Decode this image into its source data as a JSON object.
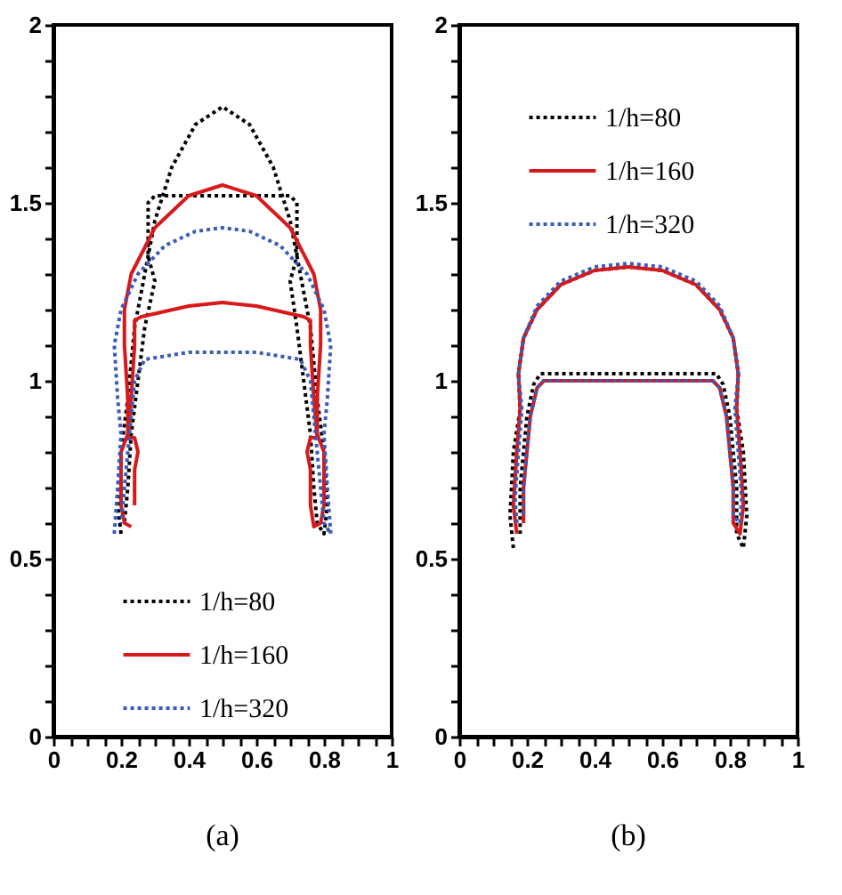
{
  "chart_data": [
    {
      "type": "line",
      "title": "(a)",
      "legend": "bottom",
      "xlim": [
        0,
        1
      ],
      "ylim": [
        0,
        2
      ],
      "xticks": [
        0,
        {
          "value": 0.05,
          "label": null
        },
        {
          "value": 0.1,
          "label": null
        },
        {
          "value": 0.15,
          "label": null
        },
        0.2,
        {
          "value": 0.25,
          "label": null
        },
        {
          "value": 0.3,
          "label": null
        },
        {
          "value": 0.35,
          "label": null
        },
        0.4,
        {
          "value": 0.45,
          "label": null
        },
        {
          "value": 0.5,
          "label": null
        },
        {
          "value": 0.55,
          "label": null
        },
        0.6,
        {
          "value": 0.65,
          "label": null
        },
        {
          "value": 0.7,
          "label": null
        },
        {
          "value": 0.75,
          "label": null
        },
        0.8,
        {
          "value": 0.85,
          "label": null
        },
        {
          "value": 0.9,
          "label": null
        },
        {
          "value": 0.95,
          "label": null
        },
        1
      ],
      "yticks": [
        0,
        {
          "value": 0.1,
          "label": null
        },
        {
          "value": 0.2,
          "label": null
        },
        {
          "value": 0.3,
          "label": null
        },
        {
          "value": 0.4,
          "label": null
        },
        0.5,
        {
          "value": 0.6,
          "label": null
        },
        {
          "value": 0.7,
          "label": null
        },
        {
          "value": 0.8,
          "label": null
        },
        {
          "value": 0.9,
          "label": null
        },
        1,
        {
          "value": 1.1,
          "label": null
        },
        {
          "value": 1.2,
          "label": null
        },
        {
          "value": 1.3,
          "label": null
        },
        {
          "value": 1.4,
          "label": null
        },
        1.5,
        {
          "value": 1.6,
          "label": null
        },
        {
          "value": 1.7,
          "label": null
        },
        {
          "value": 1.8,
          "label": null
        },
        {
          "value": 1.9,
          "label": null
        },
        2
      ],
      "series": [
        {
          "name": "1/h=80",
          "color": "#000000",
          "line_style": "dotted",
          "x": [
            0.2,
            0.19,
            0.2,
            0.22,
            0.24,
            0.27,
            0.3,
            0.35,
            0.42,
            0.5,
            0.58,
            0.65,
            0.7,
            0.73,
            0.76,
            0.78,
            0.8,
            0.81,
            0.8,
            0.78,
            0.77,
            0.76,
            0.74,
            0.72,
            0.7,
            0.72,
            0.72,
            0.7,
            0.5,
            0.3,
            0.28,
            0.28,
            0.3,
            0.27,
            0.25,
            0.23,
            0.22,
            0.21
          ],
          "values": [
            0.57,
            0.65,
            0.8,
            0.95,
            1.15,
            1.3,
            1.45,
            1.6,
            1.72,
            1.77,
            1.72,
            1.6,
            1.45,
            1.3,
            1.15,
            0.95,
            0.8,
            0.65,
            0.57,
            0.6,
            0.7,
            0.85,
            1.0,
            1.15,
            1.28,
            1.35,
            1.5,
            1.52,
            1.52,
            1.52,
            1.5,
            1.35,
            1.28,
            1.15,
            1.0,
            0.85,
            0.7,
            0.6
          ]
        },
        {
          "name": "1/h=160",
          "color": "#d7191c",
          "line_style": "solid",
          "x": [
            0.23,
            0.21,
            0.2,
            0.2,
            0.22,
            0.22,
            0.21,
            0.21,
            0.23,
            0.3,
            0.4,
            0.5,
            0.6,
            0.7,
            0.77,
            0.79,
            0.79,
            0.78,
            0.78,
            0.8,
            0.8,
            0.79,
            0.77,
            0.76,
            0.76,
            0.75,
            0.76,
            0.78,
            0.77,
            0.76,
            0.76,
            0.74,
            0.6,
            0.5,
            0.4,
            0.26,
            0.24,
            0.24,
            0.23,
            0.22,
            0.24,
            0.25,
            0.24,
            0.24
          ],
          "values": [
            0.59,
            0.6,
            0.65,
            0.8,
            0.85,
            0.95,
            1.1,
            1.2,
            1.3,
            1.43,
            1.52,
            1.55,
            1.52,
            1.43,
            1.3,
            1.2,
            1.1,
            0.95,
            0.85,
            0.8,
            0.65,
            0.6,
            0.59,
            0.65,
            0.75,
            0.8,
            0.84,
            0.84,
            0.95,
            1.1,
            1.17,
            1.18,
            1.21,
            1.22,
            1.21,
            1.18,
            1.17,
            1.1,
            0.95,
            0.84,
            0.84,
            0.8,
            0.75,
            0.65
          ]
        },
        {
          "name": "1/h=320",
          "color": "#3a5bb8",
          "line_style": "dotted",
          "x": [
            0.18,
            0.19,
            0.2,
            0.19,
            0.18,
            0.2,
            0.25,
            0.33,
            0.42,
            0.5,
            0.58,
            0.67,
            0.75,
            0.8,
            0.82,
            0.81,
            0.8,
            0.81,
            0.82,
            0.8,
            0.79,
            0.78,
            0.77,
            0.76,
            0.73,
            0.6,
            0.5,
            0.4,
            0.27,
            0.24,
            0.23,
            0.22,
            0.21,
            0.2
          ],
          "values": [
            0.57,
            0.7,
            0.85,
            0.95,
            1.1,
            1.2,
            1.3,
            1.38,
            1.42,
            1.43,
            1.42,
            1.38,
            1.3,
            1.2,
            1.1,
            0.95,
            0.85,
            0.7,
            0.57,
            0.6,
            0.7,
            0.8,
            0.9,
            1.0,
            1.06,
            1.08,
            1.08,
            1.08,
            1.06,
            1.0,
            0.9,
            0.8,
            0.7,
            0.6
          ]
        }
      ]
    },
    {
      "type": "line",
      "title": "(b)",
      "legend": "top",
      "xlim": [
        0,
        1
      ],
      "ylim": [
        0,
        2
      ],
      "xticks": [
        0,
        {
          "value": 0.05,
          "label": null
        },
        {
          "value": 0.1,
          "label": null
        },
        {
          "value": 0.15,
          "label": null
        },
        0.2,
        {
          "value": 0.25,
          "label": null
        },
        {
          "value": 0.3,
          "label": null
        },
        {
          "value": 0.35,
          "label": null
        },
        0.4,
        {
          "value": 0.45,
          "label": null
        },
        {
          "value": 0.5,
          "label": null
        },
        {
          "value": 0.55,
          "label": null
        },
        0.6,
        {
          "value": 0.65,
          "label": null
        },
        {
          "value": 0.7,
          "label": null
        },
        {
          "value": 0.75,
          "label": null
        },
        0.8,
        {
          "value": 0.85,
          "label": null
        },
        {
          "value": 0.9,
          "label": null
        },
        {
          "value": 0.95,
          "label": null
        },
        1
      ],
      "yticks": [
        0,
        {
          "value": 0.1,
          "label": null
        },
        {
          "value": 0.2,
          "label": null
        },
        {
          "value": 0.3,
          "label": null
        },
        {
          "value": 0.4,
          "label": null
        },
        0.5,
        {
          "value": 0.6,
          "label": null
        },
        {
          "value": 0.7,
          "label": null
        },
        {
          "value": 0.8,
          "label": null
        },
        {
          "value": 0.9,
          "label": null
        },
        1,
        {
          "value": 1.1,
          "label": null
        },
        {
          "value": 1.2,
          "label": null
        },
        {
          "value": 1.3,
          "label": null
        },
        {
          "value": 1.4,
          "label": null
        },
        1.5,
        {
          "value": 1.6,
          "label": null
        },
        {
          "value": 1.7,
          "label": null
        },
        {
          "value": 1.8,
          "label": null
        },
        {
          "value": 1.9,
          "label": null
        },
        2
      ],
      "series": [
        {
          "name": "1/h=80",
          "color": "#000000",
          "line_style": "dotted",
          "x": [
            0.16,
            0.15,
            0.16,
            0.18,
            0.175,
            0.19,
            0.23,
            0.3,
            0.4,
            0.5,
            0.6,
            0.7,
            0.77,
            0.81,
            0.825,
            0.82,
            0.84,
            0.85,
            0.84,
            0.82,
            0.82,
            0.81,
            0.8,
            0.78,
            0.76,
            0.5,
            0.24,
            0.22,
            0.2,
            0.19,
            0.18,
            0.18
          ],
          "values": [
            0.53,
            0.62,
            0.8,
            0.92,
            1.02,
            1.12,
            1.2,
            1.27,
            1.31,
            1.32,
            1.31,
            1.27,
            1.2,
            1.12,
            1.02,
            0.92,
            0.8,
            0.62,
            0.53,
            0.57,
            0.7,
            0.8,
            0.9,
            0.99,
            1.02,
            1.02,
            1.02,
            0.99,
            0.9,
            0.8,
            0.7,
            0.57
          ]
        },
        {
          "name": "1/h=160",
          "color": "#d7191c",
          "line_style": "solid",
          "x": [
            0.17,
            0.16,
            0.17,
            0.18,
            0.175,
            0.19,
            0.23,
            0.3,
            0.4,
            0.5,
            0.6,
            0.7,
            0.77,
            0.81,
            0.825,
            0.82,
            0.83,
            0.84,
            0.83,
            0.81,
            0.81,
            0.8,
            0.79,
            0.77,
            0.75,
            0.5,
            0.25,
            0.23,
            0.21,
            0.2,
            0.19,
            0.19
          ],
          "values": [
            0.57,
            0.65,
            0.8,
            0.92,
            1.02,
            1.12,
            1.2,
            1.27,
            1.31,
            1.32,
            1.31,
            1.27,
            1.2,
            1.12,
            1.02,
            0.92,
            0.8,
            0.65,
            0.57,
            0.6,
            0.7,
            0.8,
            0.9,
            0.98,
            1.0,
            1.0,
            1.0,
            0.98,
            0.9,
            0.8,
            0.7,
            0.6
          ]
        },
        {
          "name": "1/h=320",
          "color": "#3a5bb8",
          "line_style": "dotted",
          "x": [
            0.17,
            0.165,
            0.175,
            0.185,
            0.175,
            0.19,
            0.23,
            0.3,
            0.4,
            0.5,
            0.6,
            0.7,
            0.77,
            0.81,
            0.825,
            0.815,
            0.825,
            0.835,
            0.83,
            0.81,
            0.81,
            0.8,
            0.79,
            0.77,
            0.75,
            0.5,
            0.25,
            0.23,
            0.21,
            0.2,
            0.19,
            0.19
          ],
          "values": [
            0.6,
            0.67,
            0.8,
            0.92,
            1.02,
            1.12,
            1.21,
            1.28,
            1.32,
            1.33,
            1.32,
            1.28,
            1.21,
            1.12,
            1.02,
            0.92,
            0.8,
            0.67,
            0.6,
            0.62,
            0.7,
            0.8,
            0.9,
            0.98,
            1.0,
            1.0,
            1.0,
            0.98,
            0.9,
            0.8,
            0.7,
            0.62
          ]
        }
      ]
    }
  ]
}
